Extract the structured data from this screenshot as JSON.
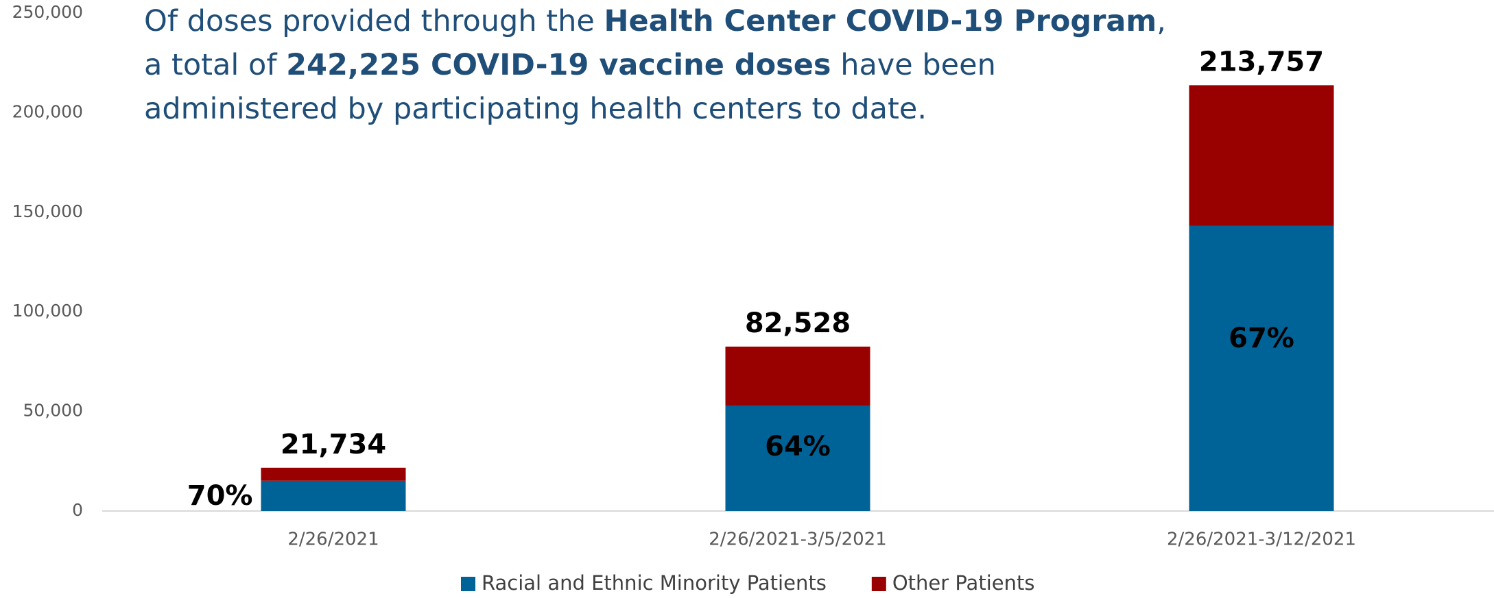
{
  "chart_data": {
    "type": "stacked_bar",
    "title_segments": [
      [
        "Of doses provided through the ",
        "Health Center COVID-19 Program",
        ","
      ],
      [
        "a total of ",
        "242,225 COVID-19 vaccine doses",
        " have been"
      ],
      [
        "administered by participating health centers to date."
      ]
    ],
    "categories": [
      "2/26/2021",
      "2/26/2021-3/5/2021",
      "2/26/2021-3/12/2021"
    ],
    "series": [
      {
        "name": "Racial and Ethnic Minority Patients",
        "color": "#006398",
        "values": [
          15214,
          52818,
          143217
        ],
        "share_labels": [
          "70%",
          "64%",
          "67%"
        ]
      },
      {
        "name": "Other Patients",
        "color": "#990000",
        "values": [
          6520,
          29710,
          70540
        ]
      }
    ],
    "totals": [
      21734,
      82528,
      213757
    ],
    "total_labels": [
      "21,734",
      "82,528",
      "213,757"
    ],
    "ylim": [
      0,
      250000
    ],
    "yticks": [
      {
        "value": 0,
        "label": "0"
      },
      {
        "value": 50000,
        "label": "50,000"
      },
      {
        "value": 100000,
        "label": "100,000"
      },
      {
        "value": 150000,
        "label": "150,000"
      },
      {
        "value": 200000,
        "label": "200,000"
      },
      {
        "value": 250000,
        "label": "250,000"
      }
    ],
    "legend": "bottom"
  }
}
